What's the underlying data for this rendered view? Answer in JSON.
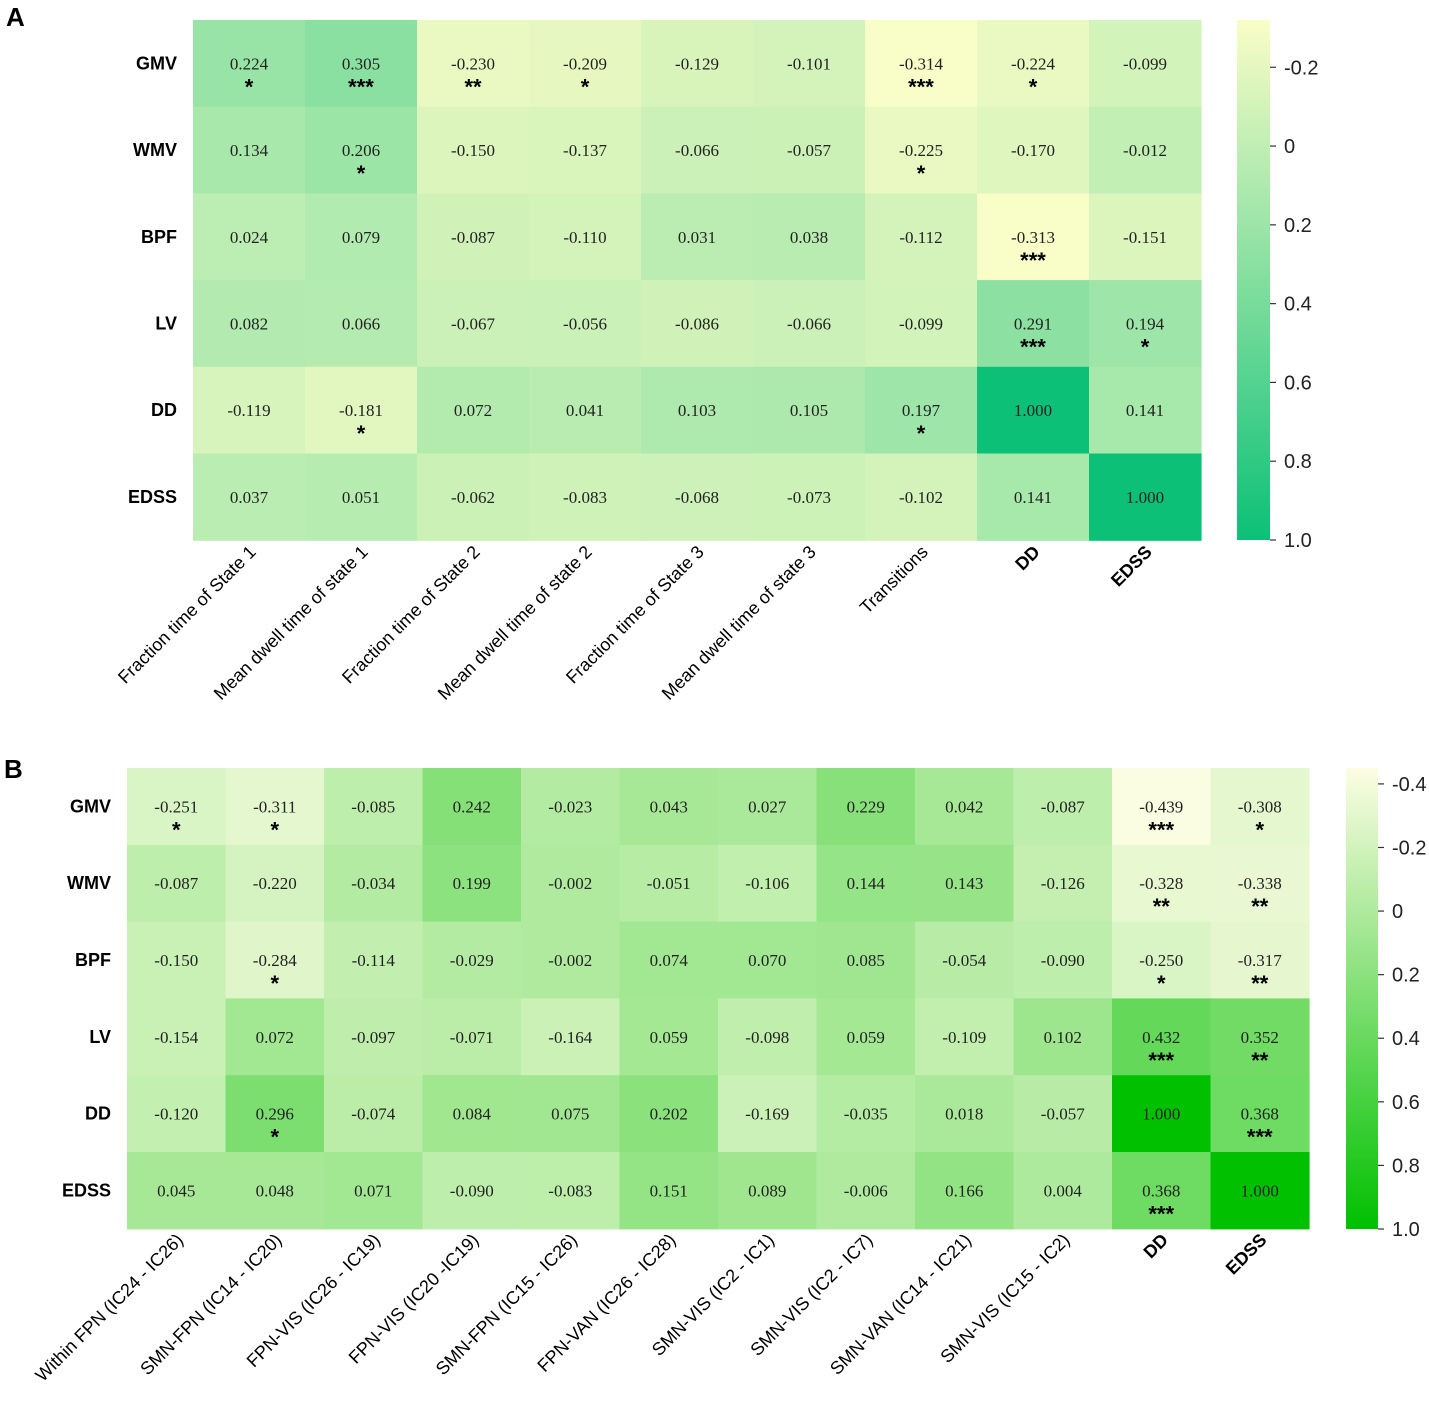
{
  "chart_data": [
    {
      "panel": "A",
      "type": "heatmap",
      "rows": [
        "GMV",
        "WMV",
        "BPF",
        "LV",
        "DD",
        "EDSS"
      ],
      "columns": [
        "Fraction time of State 1",
        "Mean dwell time of state 1",
        "Fraction time of State 2",
        "Mean dwell time of state 2",
        "Fraction time of State 3",
        "Mean dwell time of state 3",
        "Transitions",
        "DD",
        "EDSS"
      ],
      "values": [
        [
          0.224,
          0.305,
          -0.23,
          -0.209,
          -0.129,
          -0.101,
          -0.314,
          -0.224,
          -0.099
        ],
        [
          0.134,
          0.206,
          -0.15,
          -0.137,
          -0.066,
          -0.057,
          -0.225,
          -0.17,
          -0.012
        ],
        [
          0.024,
          0.079,
          -0.087,
          -0.11,
          0.031,
          0.038,
          -0.112,
          -0.313,
          -0.151
        ],
        [
          0.082,
          0.066,
          -0.067,
          -0.056,
          -0.086,
          -0.066,
          -0.099,
          0.291,
          0.194
        ],
        [
          -0.119,
          -0.181,
          0.072,
          0.041,
          0.103,
          0.105,
          0.197,
          1.0,
          0.141
        ],
        [
          0.037,
          0.051,
          -0.062,
          -0.083,
          -0.068,
          -0.073,
          -0.102,
          0.141,
          1.0
        ]
      ],
      "labels": [
        [
          "0.224",
          "0.305",
          "-0.230",
          "-0.209",
          "-0.129",
          "-0.101",
          "-0.314",
          "-0.224",
          "-0.099"
        ],
        [
          "0.134",
          "0.206",
          "-0.150",
          "-0.137",
          "-0.066",
          "-0.057",
          "-0.225",
          "-0.170",
          "-0.012"
        ],
        [
          "0.024",
          "0.079",
          "-0.087",
          "-0.110",
          "0.031",
          "0.038",
          "-0.112",
          "-0.313",
          "-0.151"
        ],
        [
          "0.082",
          "0.066",
          "-0.067",
          "-0.056",
          "-0.086",
          "-0.066",
          "-0.099",
          "0.291",
          "0.194"
        ],
        [
          "-0.119",
          "-0.181",
          "0.072",
          "0.041",
          "0.103",
          "0.105",
          "0.197",
          "1.000",
          "0.141"
        ],
        [
          "0.037",
          "0.051",
          "-0.062",
          "-0.083",
          "-0.068",
          "-0.073",
          "-0.102",
          "0.141",
          "1.000"
        ]
      ],
      "significance": [
        [
          "*",
          "***",
          "**",
          "*",
          "",
          "",
          "***",
          "*",
          ""
        ],
        [
          "",
          "*",
          "",
          "",
          "",
          "",
          "*",
          "",
          ""
        ],
        [
          "",
          "",
          "",
          "",
          "",
          "",
          "",
          "***",
          ""
        ],
        [
          "",
          "",
          "",
          "",
          "",
          "",
          "",
          "***",
          "*"
        ],
        [
          "",
          "*",
          "",
          "",
          "",
          "",
          "*",
          "",
          ""
        ],
        [
          "",
          "",
          "",
          "",
          "",
          "",
          "",
          "",
          ""
        ]
      ],
      "colorbar": {
        "range": [
          -0.32,
          1.0
        ],
        "ticks": [
          -0.2,
          0,
          0.2,
          0.4,
          0.6,
          0.8,
          1.0
        ],
        "tick_labels": [
          "-0.2",
          "0",
          "0.2",
          "0.4",
          "0.6",
          "0.8",
          "1.0"
        ],
        "color_low": "#fafdc7",
        "color_high": "#0cc077"
      }
    },
    {
      "panel": "B",
      "type": "heatmap",
      "rows": [
        "GMV",
        "WMV",
        "BPF",
        "LV",
        "DD",
        "EDSS"
      ],
      "columns": [
        "Within FPN (IC24 - IC26)",
        "SMN-FPN (IC14 - IC20)",
        "FPN-VIS (IC26 - IC19)",
        "FPN-VIS (IC20 -IC19)",
        "SMN-FPN (IC15 - IC26)",
        "FPN-VAN (IC26 - IC28)",
        "SMN-VIS (IC2 - IC1)",
        "SMN-VIS (IC2 - IC7)",
        "SMN-VAN (IC14 - IC21)",
        "SMN-VIS (IC15 - IC2)",
        "DD",
        "EDSS"
      ],
      "values": [
        [
          -0.251,
          -0.311,
          -0.085,
          0.242,
          -0.023,
          0.043,
          0.027,
          0.229,
          0.042,
          -0.087,
          -0.439,
          -0.308
        ],
        [
          -0.087,
          -0.22,
          -0.034,
          0.199,
          -0.002,
          -0.051,
          -0.106,
          0.144,
          0.143,
          -0.126,
          -0.328,
          -0.338
        ],
        [
          -0.15,
          -0.284,
          -0.114,
          -0.029,
          -0.002,
          0.074,
          0.07,
          0.085,
          -0.054,
          -0.09,
          -0.25,
          -0.317
        ],
        [
          -0.154,
          0.072,
          -0.097,
          -0.071,
          -0.164,
          0.059,
          -0.098,
          0.059,
          -0.109,
          0.102,
          0.432,
          0.352
        ],
        [
          -0.12,
          0.296,
          -0.074,
          0.084,
          0.075,
          0.202,
          -0.169,
          -0.035,
          0.018,
          -0.057,
          1.0,
          0.368
        ],
        [
          0.045,
          0.048,
          0.071,
          -0.09,
          -0.083,
          0.151,
          0.089,
          -0.006,
          0.166,
          0.004,
          0.368,
          1.0
        ]
      ],
      "labels": [
        [
          "-0.251",
          "-0.311",
          "-0.085",
          "0.242",
          "-0.023",
          "0.043",
          "0.027",
          "0.229",
          "0.042",
          "-0.087",
          "-0.439",
          "-0.308"
        ],
        [
          "-0.087",
          "-0.220",
          "-0.034",
          "0.199",
          "-0.002",
          "-0.051",
          "-0.106",
          "0.144",
          "0.143",
          "-0.126",
          "-0.328",
          "-0.338"
        ],
        [
          "-0.150",
          "-0.284",
          "-0.114",
          "-0.029",
          "-0.002",
          "0.074",
          "0.070",
          "0.085",
          "-0.054",
          "-0.090",
          "-0.250",
          "-0.317"
        ],
        [
          "-0.154",
          "0.072",
          "-0.097",
          "-0.071",
          "-0.164",
          "0.059",
          "-0.098",
          "0.059",
          "-0.109",
          "0.102",
          "0.432",
          "0.352"
        ],
        [
          "-0.120",
          "0.296",
          "-0.074",
          "0.084",
          "0.075",
          "0.202",
          "-0.169",
          "-0.035",
          "0.018",
          "-0.057",
          "1.000",
          "0.368"
        ],
        [
          "0.045",
          "0.048",
          "0.071",
          "-0.090",
          "-0.083",
          "0.151",
          "0.089",
          "-0.006",
          "0.166",
          "0.004",
          "0.368",
          "1.000"
        ]
      ],
      "significance": [
        [
          "*",
          "*",
          "",
          "",
          "",
          "",
          "",
          "",
          "",
          "",
          "***",
          "*"
        ],
        [
          "",
          "",
          "",
          "",
          "",
          "",
          "",
          "",
          "",
          "",
          "**",
          "**"
        ],
        [
          "",
          "*",
          "",
          "",
          "",
          "",
          "",
          "",
          "",
          "",
          "*",
          "**"
        ],
        [
          "",
          "",
          "",
          "",
          "",
          "",
          "",
          "",
          "",
          "",
          "***",
          "**"
        ],
        [
          "",
          "*",
          "",
          "",
          "",
          "",
          "",
          "",
          "",
          "",
          "",
          "***"
        ],
        [
          "",
          "",
          "",
          "",
          "",
          "",
          "",
          "",
          "",
          "",
          "***",
          ""
        ]
      ],
      "colorbar": {
        "range": [
          -0.45,
          1.0
        ],
        "ticks": [
          -0.4,
          -0.2,
          0,
          0.2,
          0.4,
          0.6,
          0.8,
          1.0
        ],
        "tick_labels": [
          "-0.4",
          "-0.2",
          "0",
          "0.2",
          "0.4",
          "0.6",
          "0.8",
          "1.0"
        ],
        "color_low": "#fdfde4",
        "color_high": "#00c000"
      }
    }
  ]
}
